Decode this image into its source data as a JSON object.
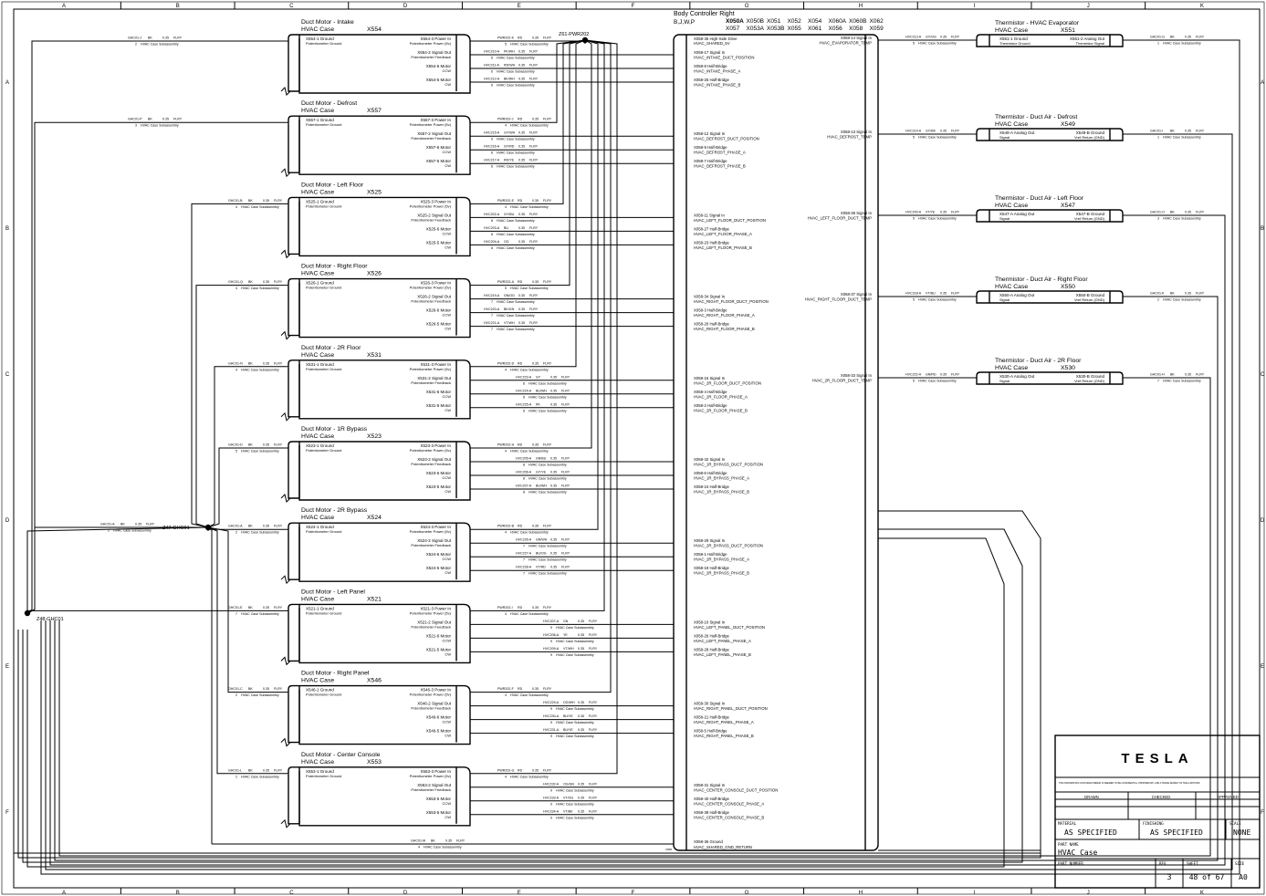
{
  "grid": {
    "columns": [
      "A",
      "B",
      "C",
      "D",
      "E",
      "F",
      "G",
      "H",
      "I",
      "J",
      "K"
    ],
    "rows": [
      "A",
      "B",
      "C",
      "D",
      "E",
      "F"
    ]
  },
  "common": {
    "case": "HVAC Case",
    "gauge": "0.35",
    "insulation": "FLRY",
    "subassembly": "HVAC Case Subassembly"
  },
  "splices": {
    "power": "Z61-PWR202",
    "ground_main": "Z47-GHC01",
    "ground_left": "Z48-GHC01"
  },
  "controller": {
    "title": "Body Controller Right",
    "variants": "B,J,W,P",
    "connectors_row1": [
      "X050A",
      "X050B",
      "X051",
      "X052",
      "X054",
      "X060A",
      "X060B",
      "X062"
    ],
    "connectors_row2": [
      "X057",
      "X053A",
      "X053B",
      "X055",
      "X061",
      "X056",
      "X058",
      "X059"
    ],
    "top_pin": {
      "pin": "X058-35 High-Side Drive",
      "net": "HVAC_SHARED_5V"
    },
    "ground_pin": {
      "pin": "X058-36 Ground",
      "net": "HVAC_SHARED_GND_RETURN"
    },
    "ground_conn": "X058"
  },
  "motor_pin_labels": {
    "ground": "Ground",
    "ground_sub": "Potentiometer Ground",
    "power": "Power In",
    "power_sub": "Potentiometer Power (5v)",
    "signal": "Signal Out",
    "signal_sub": "Potentiometer Feedback",
    "ccw": "Motor",
    "ccw_sub": "CCW",
    "cw": "Motor",
    "cw_sub": "CW"
  },
  "motors": [
    {
      "title": "Duct Motor - Intake",
      "conn": "X554",
      "ground_wire": "GHC01-J",
      "ground_color": "BK",
      "ground_cav": "2",
      "wires": [
        {
          "id": "PWR202-K",
          "color": "RD",
          "cav": "5"
        },
        {
          "id": "HVC210-A",
          "color": "PK/WH",
          "cav": "6"
        },
        {
          "id": "HVC211-A",
          "color": "RD/WH",
          "cav": "6"
        },
        {
          "id": "HVC212-A",
          "color": "BK/WH",
          "cav": "6"
        }
      ],
      "ctrl": [
        {
          "pin": "X058-17 Signal In",
          "net": "HVAC_INTAKE_DUCT_POSITION"
        },
        {
          "pin": "X058-8 Half-Bridge",
          "net": "HVAC_INTAKE_PHASE_A"
        },
        {
          "pin": "X058-25 Half-Bridge",
          "net": "HVAC_INTAKE_PHASE_B"
        }
      ]
    },
    {
      "title": "Duct Motor - Defrost",
      "conn": "X557",
      "ground_wire": "GHC01-P",
      "ground_color": "BK",
      "ground_cav": "3",
      "wires": [
        {
          "id": "PWR202-J",
          "color": "RD",
          "cav": "4"
        },
        {
          "id": "HVC215-A",
          "color": "GY/WH",
          "cav": "6"
        },
        {
          "id": "HVC216-A",
          "color": "GY/RD",
          "cav": "6"
        },
        {
          "id": "HVC217-A",
          "color": "RD/YE",
          "cav": "6"
        }
      ],
      "ctrl": [
        {
          "pin": "X058-12 Signal In",
          "net": "HVAC_DEFROST_DUCT_POSITION"
        },
        {
          "pin": "X058-9 Half-Bridge",
          "net": "HVAC_DEFROST_PHASE_A"
        },
        {
          "pin": "X058-7 Half-Bridge",
          "net": "HVAC_DEFROST_PHASE_B"
        }
      ]
    },
    {
      "title": "Duct Motor - Left Floor",
      "conn": "X525",
      "ground_wire": "GHC01-B",
      "ground_color": "BK",
      "ground_cav": "4",
      "wires": [
        {
          "id": "PWR202-E",
          "color": "RD",
          "cav": "4"
        },
        {
          "id": "HVC202-A",
          "color": "GY/BU",
          "cav": "8"
        },
        {
          "id": "HVC203-A",
          "color": "BU",
          "cav": "8"
        },
        {
          "id": "HVC204-A",
          "color": "OG",
          "cav": "8"
        }
      ],
      "ctrl": [
        {
          "pin": "X058-11 Signal In",
          "net": "HVAC_LEFT_FLOOR_DUCT_POSITION"
        },
        {
          "pin": "X058-27 Half-Bridge",
          "net": "HVAC_LEFT_FLOOR_PHASE_A"
        },
        {
          "pin": "X058-23 Half-Bridge",
          "net": "HVAC_LEFT_FLOOR_PHASE_B"
        }
      ]
    },
    {
      "title": "Duct Motor - Right Floor",
      "conn": "X526",
      "ground_wire": "GHC01-Q",
      "ground_color": "BK",
      "ground_cav": "4",
      "wires": [
        {
          "id": "PWR202-A",
          "color": "RD",
          "cav": "5"
        },
        {
          "id": "HVC219-A",
          "color": "GN/OG",
          "cav": "7"
        },
        {
          "id": "HVC220-A",
          "color": "BK/GN",
          "cav": "7"
        },
        {
          "id": "HVC221-A",
          "color": "VT/WH",
          "cav": "7"
        }
      ],
      "ctrl": [
        {
          "pin": "X058-34 Signal In",
          "net": "HVAC_RIGHT_FLOOR_DUCT_POSITION"
        },
        {
          "pin": "X058-3 Half-Bridge",
          "net": "HVAC_RIGHT_FLOOR_PHASE_A"
        },
        {
          "pin": "X058-20 Half-Bridge",
          "net": "HVAC_RIGHT_FLOOR_PHASE_B"
        }
      ]
    },
    {
      "title": "Duct Motor - 2R Floor",
      "conn": "X531",
      "ground_wire": "GHC01-N",
      "ground_color": "BK",
      "ground_cav": "4",
      "wires": [
        {
          "id": "PWR202-D",
          "color": "RD",
          "cav": "4"
        },
        {
          "id": "HVC223-A",
          "color": "GY",
          "cav": "6"
        },
        {
          "id": "HVC224-A",
          "color": "BU/WH",
          "cav": "6"
        },
        {
          "id": "HVC225-A",
          "color": "PK",
          "cav": "6"
        }
      ],
      "ctrl": [
        {
          "pin": "X058-16 Signal In",
          "net": "HVAC_2R_FLOOR_DUCT_POSITION"
        },
        {
          "pin": "X058-4 Half-Bridge",
          "net": "HVAC_2R_FLOOR_PHASE_A"
        },
        {
          "pin": "X058-2 Half-Bridge",
          "net": "HVAC_2R_FLOOR_PHASE_B"
        }
      ]
    },
    {
      "title": "Duct Motor - 1R Bypass",
      "conn": "X523",
      "ground_wire": "GHC01-D",
      "ground_color": "BK",
      "ground_cav": "5",
      "wires": [
        {
          "id": "PWR202-H",
          "color": "RD",
          "cav": "4"
        },
        {
          "id": "HVC205-A",
          "color": "GN/BU",
          "cav": "8"
        },
        {
          "id": "HVC206-A",
          "color": "GY/YE",
          "cav": "8"
        },
        {
          "id": "HVC207-A",
          "color": "BU/WH",
          "cav": "8"
        }
      ],
      "ctrl": [
        {
          "pin": "X058-32 Signal In",
          "net": "HVAC_1R_BYPASS_DUCT_POSITION"
        },
        {
          "pin": "X058-6 Half-Bridge",
          "net": "HVAC_1R_BYPASS_PHASE_A"
        },
        {
          "pin": "X058-24 Half-Bridge",
          "net": "HVAC_1R_BYPASS_PHASE_B"
        }
      ]
    },
    {
      "title": "Duct Motor - 2R Bypass",
      "conn": "X524",
      "ground_wire": "GHC01-A",
      "ground_color": "BK",
      "ground_cav": "2",
      "wires": [
        {
          "id": "PWR202-B",
          "color": "RD",
          "cav": "4"
        },
        {
          "id": "HVC226-A",
          "color": "GN/WH",
          "cav": "7"
        },
        {
          "id": "HVC227-A",
          "color": "BU/OG",
          "cav": "7"
        },
        {
          "id": "HVC228-A",
          "color": "VT/RD",
          "cav": "7"
        }
      ],
      "ctrl": [
        {
          "pin": "X058-29 Signal In",
          "net": "HVAC_2R_BYPASS_DUCT_POSITION"
        },
        {
          "pin": "X058-1 Half-Bridge",
          "net": "HVAC_2R_BYPASS_PHASE_A"
        },
        {
          "pin": "X058-19 Half-Bridge",
          "net": "HVAC_2R_BYPASS_PHASE_B"
        }
      ]
    },
    {
      "title": "Duct Motor - Left Panel",
      "conn": "X521",
      "ground_wire": "GHC01-E",
      "ground_color": "BK",
      "ground_cav": "7",
      "wires": [
        {
          "id": "PWR202-I",
          "color": "RD",
          "cav": "4"
        },
        {
          "id": "HVC207-A",
          "color": "GN",
          "cav": "9"
        },
        {
          "id": "HVC208-A",
          "color": "YE",
          "cav": "9"
        },
        {
          "id": "HVC209-A",
          "color": "VT/WH",
          "cav": "9"
        }
      ],
      "ctrl": [
        {
          "pin": "X058-10 Signal In",
          "net": "HVAC_LEFT_PANEL_DUCT_POSITION"
        },
        {
          "pin": "X058-26 Half-Bridge",
          "net": "HVAC_LEFT_PANEL_PHASE_A"
        },
        {
          "pin": "X058-28 Half-Bridge",
          "net": "HVAC_LEFT_PANEL_PHASE_B"
        }
      ]
    },
    {
      "title": "Duct Motor - Right Panel",
      "conn": "X546",
      "ground_wire": "GHC01-C",
      "ground_color": "BK",
      "ground_cav": "2",
      "wires": [
        {
          "id": "PWR202-F",
          "color": "RD",
          "cav": "4"
        },
        {
          "id": "HVC229-A",
          "color": "OG/WH",
          "cav": "9"
        },
        {
          "id": "HVC230-A",
          "color": "BU/YE",
          "cav": "9"
        },
        {
          "id": "HVC231-A",
          "color": "BU/YE",
          "cav": "9"
        }
      ],
      "ctrl": [
        {
          "pin": "X058-30 Signal In",
          "net": "HVAC_RIGHT_PANEL_DUCT_POSITION"
        },
        {
          "pin": "X058-21 Half-Bridge",
          "net": "HVAC_RIGHT_PANEL_PHASE_A"
        },
        {
          "pin": "X058-5 Half-Bridge",
          "net": "HVAC_RIGHT_PANEL_PHASE_B"
        }
      ]
    },
    {
      "title": "Duct Motor - Center Console",
      "conn": "X553",
      "ground_wire": "GHC01-L",
      "ground_color": "BK",
      "ground_cav": "2",
      "wires": [
        {
          "id": "PWR202-G",
          "color": "RD",
          "cav": "4"
        },
        {
          "id": "HVC232-A",
          "color": "OG/GN",
          "cav": "9"
        },
        {
          "id": "HVC233-A",
          "color": "VT/OG",
          "cav": "9"
        },
        {
          "id": "HVC234-A",
          "color": "VT/BK",
          "cav": "9"
        }
      ],
      "ctrl": [
        {
          "pin": "X058-31 Signal In",
          "net": "HVAC_CENTER_CONSOLE_DUCT_POSITION"
        },
        {
          "pin": "X058-40 Half-Bridge",
          "net": "HVAC_CENTER_CONSOLE_PHASE_A"
        },
        {
          "pin": "X058-39 Half-Bridge",
          "net": "HVAC_CENTER_CONSOLE_PHASE_B"
        }
      ]
    }
  ],
  "ground_return_wire": {
    "id": "GHC01-M",
    "color": "BK",
    "cav": "4"
  },
  "thermistors": [
    {
      "title": "Thermistor - HVAC Evaporator",
      "conn": "X551",
      "left_pin": "X551-1 Ground",
      "left_sub": "Thermistor Ground",
      "right_pin": "X551-2 Analog Out",
      "right_sub": "Thermistor Signal",
      "ctrl": {
        "pin": "X058-14 Signal In",
        "net": "HVAC_EVAPORATOR_TEMP"
      },
      "sig_wire": {
        "id": "HVC213-A",
        "color": "GY/OG",
        "cav": "5"
      },
      "gnd_wire": {
        "id": "GHC01-G",
        "color": "BK",
        "cav": "1"
      }
    },
    {
      "title": "Thermistor - Duct Air - Defrost",
      "conn": "X549",
      "left_pin": "X549-A Analog Out",
      "left_sub": "Signal",
      "right_pin": "X549-B Ground",
      "right_sub": "Vref Return (GND)",
      "ctrl": {
        "pin": "X058-13 Signal In",
        "net": "HVAC_DEFROST_TEMP"
      },
      "sig_wire": {
        "id": "HVC214-A",
        "color": "GY/BK",
        "cav": "5"
      },
      "gnd_wire": {
        "id": "GHC01-I",
        "color": "BK",
        "cav": "1"
      }
    },
    {
      "title": "Thermistor - Duct Air - Left Floor",
      "conn": "X547",
      "left_pin": "X547-A Analog Out",
      "left_sub": "Signal",
      "right_pin": "X547-B Ground",
      "right_sub": "Vref Return (GND)",
      "ctrl": {
        "pin": "X058-38 Signal In",
        "net": "HVAC_LEFT_FLOOR_DUCT_TEMP"
      },
      "sig_wire": {
        "id": "HVC200-A",
        "color": "VT/YE",
        "cav": "5"
      },
      "gnd_wire": {
        "id": "GHC01-O",
        "color": "BK",
        "cav": "3"
      }
    },
    {
      "title": "Thermistor - Duct Air - Right Floor",
      "conn": "X550",
      "left_pin": "X550-A Analog Out",
      "left_sub": "Signal",
      "right_pin": "X550-B Ground",
      "right_sub": "Vref Return (GND)",
      "ctrl": {
        "pin": "X058-37 Signal In",
        "net": "HVAC_RIGHT_FLOOR_DUCT_TEMP"
      },
      "sig_wire": {
        "id": "HVC218-A",
        "color": "VT/BU",
        "cav": "5"
      },
      "gnd_wire": {
        "id": "GHC01-K",
        "color": "BK",
        "cav": "2"
      }
    },
    {
      "title": "Thermistor - Duct Air - 2R Floor",
      "conn": "X530",
      "left_pin": "X530-A Analog Out",
      "left_sub": "Signal",
      "right_pin": "X530-B Ground",
      "right_sub": "Vref Return (GND)",
      "ctrl": {
        "pin": "X058-33 Signal In",
        "net": "HVAC_2R_FLOOR_DUCT_TEMP"
      },
      "sig_wire": {
        "id": "HVC222-A",
        "color": "GN/RD",
        "cav": "5"
      },
      "gnd_wire": {
        "id": "GHC01-H",
        "color": "BK",
        "cav": "7"
      }
    }
  ],
  "title_block": {
    "logo": "TESLA",
    "notice": "THE INFORMATION CONTAINED HEREIN IS DEEMED TO BE CONFIDENTIAL, PROPRIETARY, AND A TRADE SECRET OF TESLA MOTORS.",
    "drawn_label": "DRAWN",
    "checked_label": "CHECKED",
    "approved_label": "APPROVED",
    "material_label": "MATERIAL",
    "material": "AS SPECIFIED",
    "finishing_label": "FINISHING",
    "finishing": "AS SPECIFIED",
    "scale_label": "SCALE",
    "scale": "NONE",
    "part_name_label": "PART NAME",
    "part_name": "HVAC Case",
    "part_number_label": "PART NUMBER",
    "rev_label": "REV",
    "rev": "3",
    "sheet_label": "SHEET",
    "sheet": "48 of 67",
    "size_label": "SIZE",
    "size": "A0"
  }
}
